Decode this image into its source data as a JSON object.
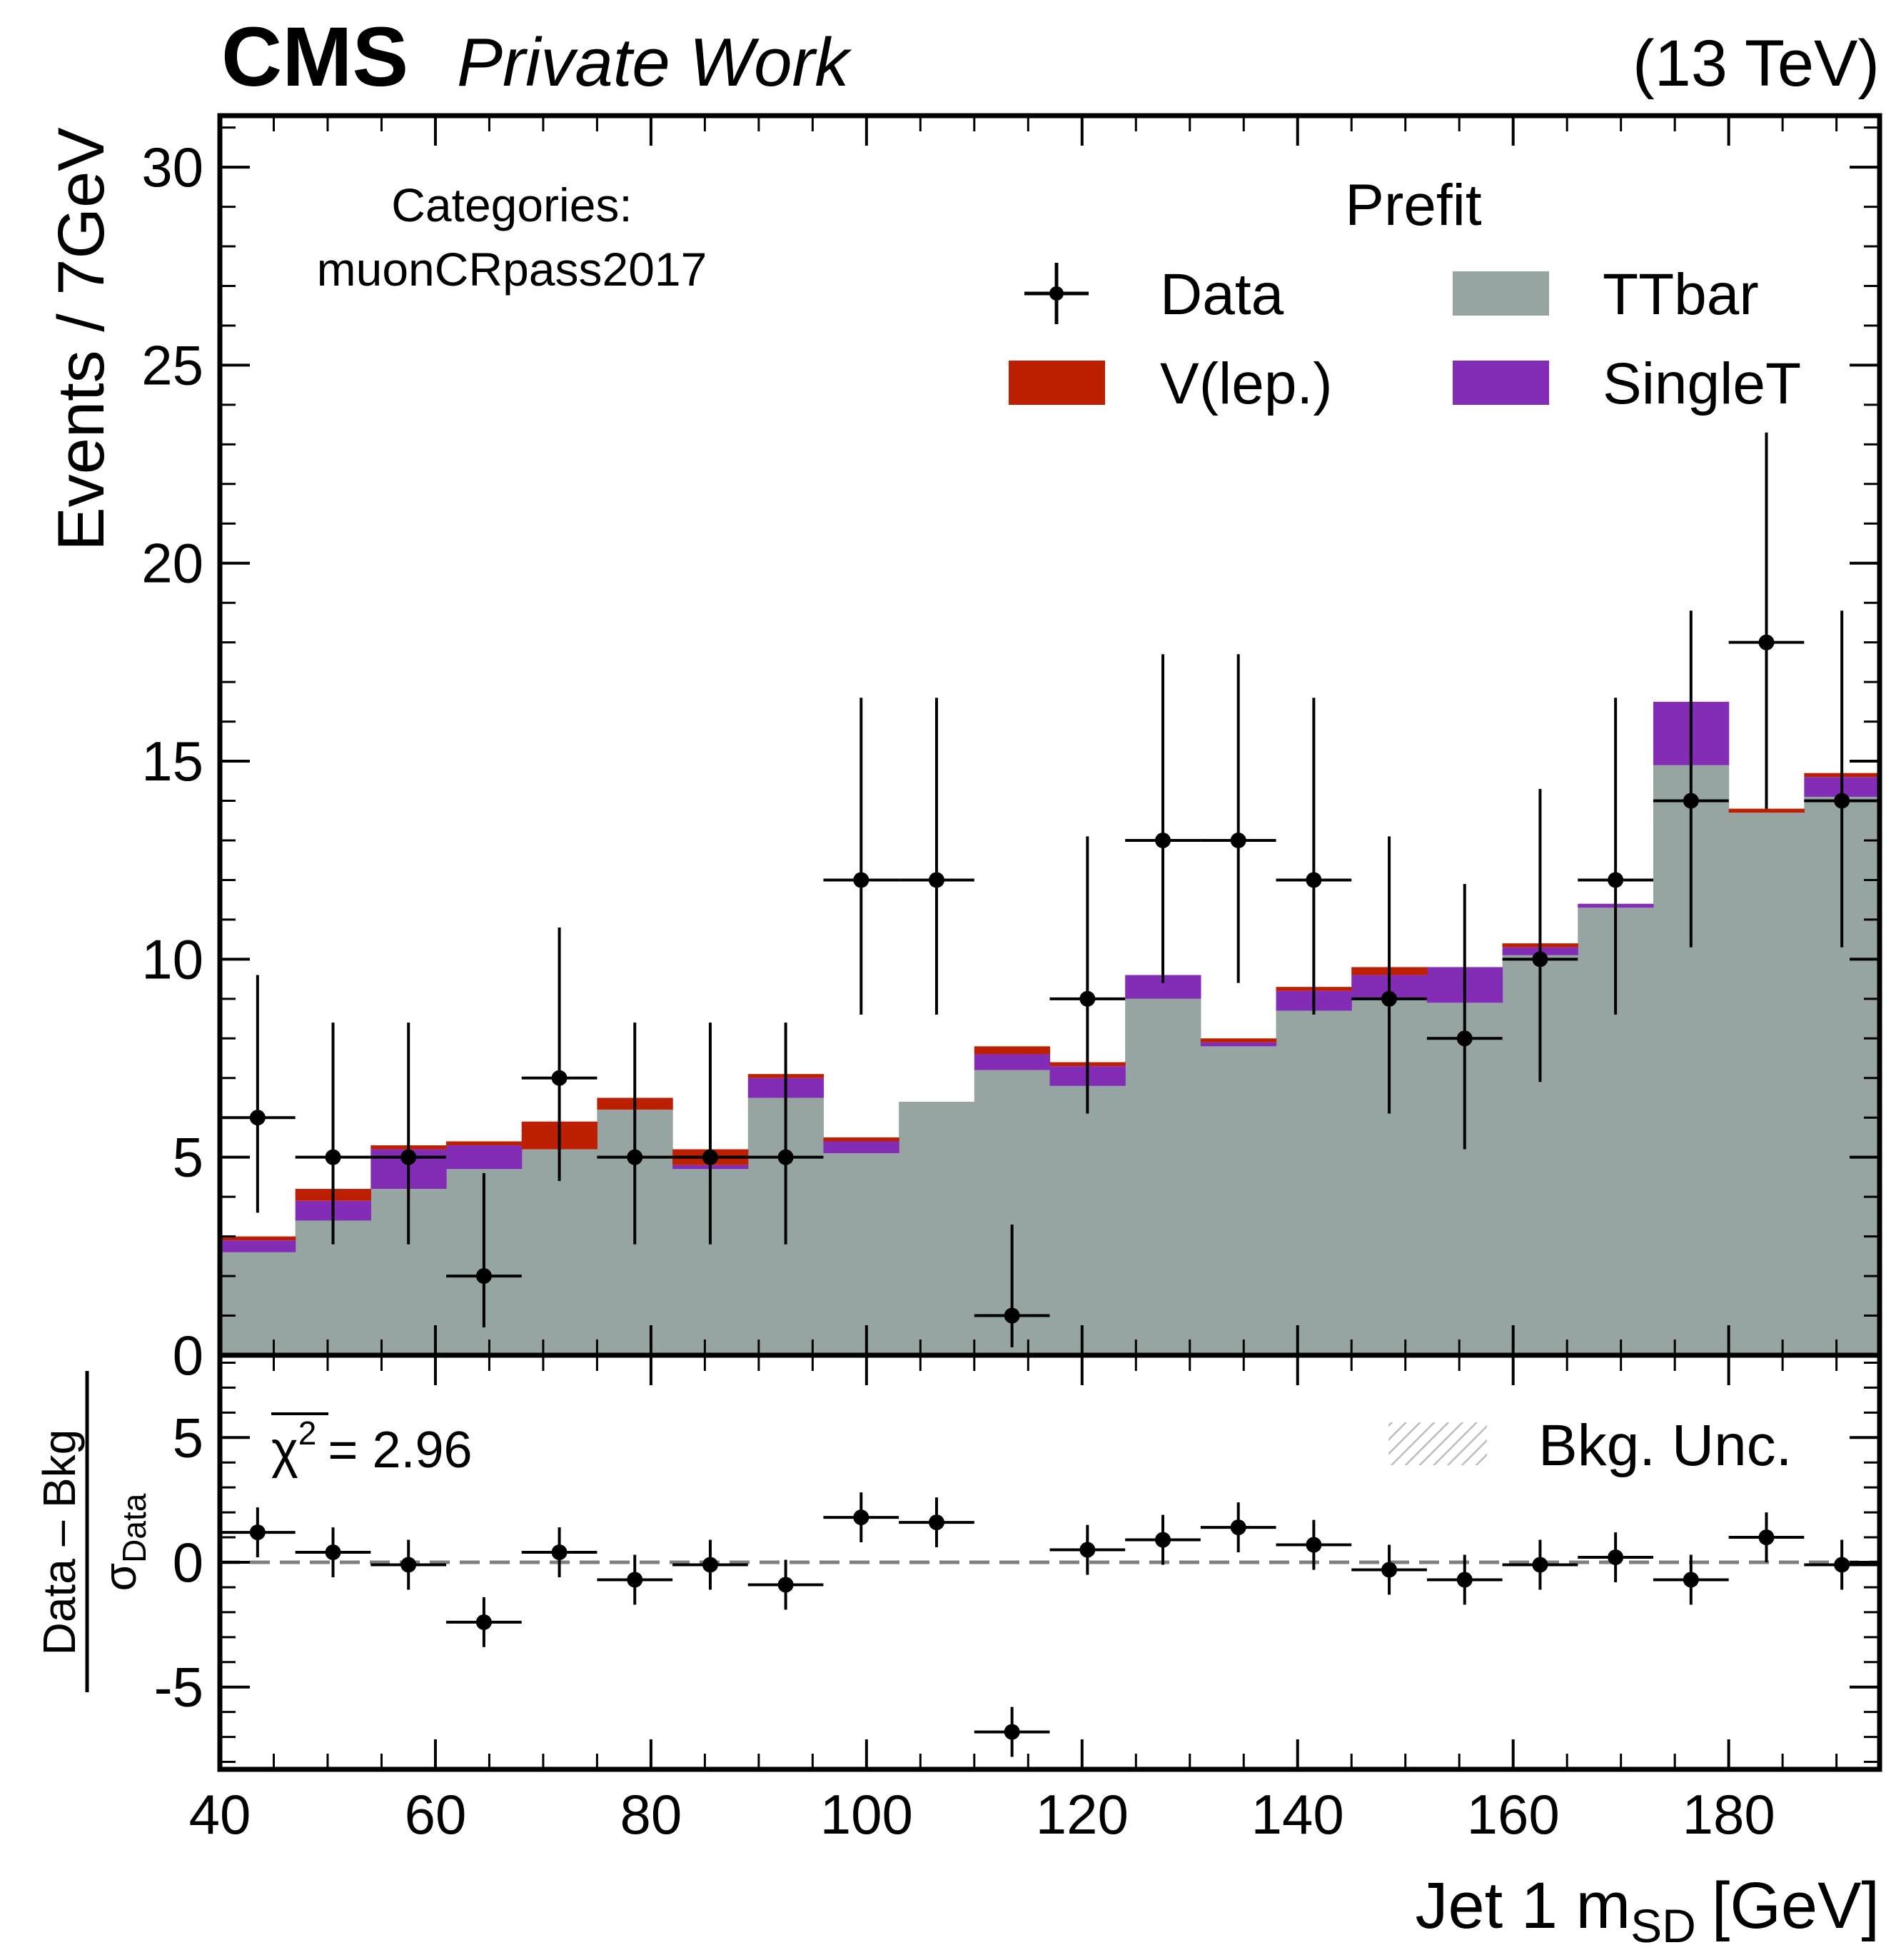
{
  "header": {
    "experiment": "CMS",
    "status": "Private Work",
    "energy": "(13 TeV)"
  },
  "chart_data": [
    {
      "type": "bar",
      "stacked": true,
      "panel": "main",
      "ylabel": "Events / 7GeV",
      "ylim": [
        0,
        31.3
      ],
      "yticks": [
        0,
        5,
        10,
        15,
        20,
        25,
        30
      ],
      "xlim": [
        40,
        194
      ],
      "xticks": [
        40,
        60,
        80,
        100,
        120,
        140,
        160,
        180
      ],
      "bin_edges": [
        40,
        47,
        54,
        61,
        68,
        75,
        82,
        89,
        96,
        103,
        110,
        117,
        124,
        131,
        138,
        145,
        152,
        159,
        166,
        173,
        180,
        187,
        194
      ],
      "annotation": {
        "line1": "Categories:",
        "line2": "muonCRpass2017"
      },
      "legend": {
        "title": "Prefit",
        "placement": "top-right",
        "entries": [
          "Data",
          "TTbar",
          "V(lep.)",
          "SingleT"
        ]
      },
      "series": [
        {
          "name": "TTbar",
          "color": "#96a5a2",
          "values": [
            2.6,
            3.4,
            4.2,
            4.7,
            5.2,
            6.2,
            4.7,
            6.5,
            5.1,
            6.4,
            7.2,
            6.8,
            9.0,
            7.8,
            8.7,
            9.0,
            8.9,
            10.1,
            11.3,
            14.9,
            13.7,
            14.1
          ]
        },
        {
          "name": "SingleT",
          "color": "#832db6",
          "values": [
            0.3,
            0.5,
            1.0,
            0.6,
            0.0,
            0.0,
            0.1,
            0.5,
            0.3,
            0.0,
            0.4,
            0.5,
            0.6,
            0.1,
            0.5,
            0.6,
            0.9,
            0.2,
            0.1,
            1.6,
            0.0,
            0.5
          ]
        },
        {
          "name": "V(lep.)",
          "color": "#bd1f01",
          "values": [
            0.1,
            0.3,
            0.1,
            0.1,
            0.7,
            0.3,
            0.4,
            0.1,
            0.1,
            0.0,
            0.2,
            0.1,
            0.0,
            0.1,
            0.1,
            0.2,
            0.0,
            0.1,
            0.0,
            0.0,
            0.1,
            0.1
          ]
        }
      ],
      "data": {
        "name": "Data",
        "values": [
          6,
          5,
          5,
          2,
          7,
          5,
          5,
          5,
          12,
          12,
          1,
          9,
          13,
          13,
          12,
          9,
          8,
          10,
          12,
          14,
          18,
          14
        ],
        "err_low": [
          2.4,
          2.2,
          2.2,
          1.3,
          2.6,
          2.2,
          2.2,
          2.2,
          3.4,
          3.4,
          0.8,
          2.9,
          3.6,
          3.6,
          3.4,
          2.9,
          2.8,
          3.1,
          3.4,
          3.7,
          4.2,
          3.7
        ],
        "err_high": [
          3.6,
          3.4,
          3.4,
          2.6,
          3.8,
          3.4,
          3.4,
          3.4,
          4.6,
          4.6,
          2.3,
          4.1,
          4.7,
          4.7,
          4.6,
          4.1,
          3.9,
          4.3,
          4.6,
          4.8,
          5.3,
          4.8
        ]
      }
    },
    {
      "type": "scatter",
      "panel": "pull",
      "ylabel_num": "Data – Bkg",
      "ylabel_den": "σ",
      "ylabel_den_sub": "Data",
      "xlabel": "Jet 1 m",
      "xlabel_sub": "SD",
      "xlabel_unit": "[GeV]",
      "ylim": [
        -8.3,
        8.3
      ],
      "yticks": [
        -5,
        0,
        5
      ],
      "ytick_labels": [
        "-5",
        "0",
        "5"
      ],
      "chi2_label": "χ",
      "chi2_power": "2",
      "chi2_value": "= 2.96",
      "legend_entry": "Bkg. Unc.",
      "values": [
        1.2,
        0.4,
        -0.1,
        -2.4,
        0.4,
        -0.7,
        -0.1,
        -0.9,
        1.8,
        1.6,
        -6.8,
        0.5,
        0.9,
        1.4,
        0.7,
        -0.3,
        -0.7,
        -0.1,
        0.2,
        -0.7,
        1.0,
        -0.1
      ]
    }
  ]
}
